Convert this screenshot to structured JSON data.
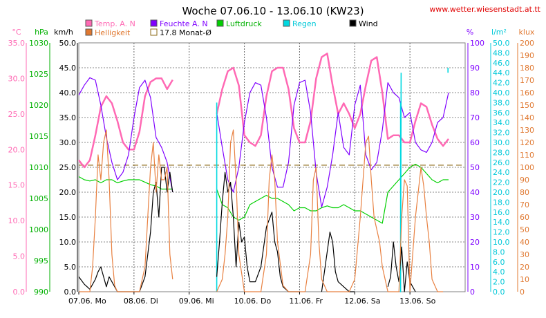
{
  "chart_data": {
    "type": "line",
    "title": "Woche 07.06.10 - 13.06.10 (KW23)",
    "source_url": "www.wetter.wiesenstadt.at.tt",
    "x_labels": [
      "07.06. Mo",
      "08.06. Di",
      "09.06. Mi",
      "10.06. Do",
      "11.06. Fr",
      "12.06. Sa",
      "13.06. So"
    ],
    "legend": [
      "Temp. A. N",
      "Helligkeit",
      "Feuchte A. N",
      "17.8 Monat-Ø",
      "Luftdruck",
      "Regen",
      "Wind"
    ],
    "axes": {
      "temp": {
        "unit": "°C",
        "ticks": [
          "35.0",
          "30.0",
          "25.0",
          "20.0",
          "15.0",
          "10.0",
          "5.0",
          "0.0"
        ],
        "color": "#ff69b4",
        "range": [
          0,
          35
        ]
      },
      "pressure": {
        "unit": "hPa",
        "ticks": [
          "1030",
          "1025",
          "1020",
          "1015",
          "1010",
          "1005",
          "1000",
          "995",
          "990"
        ],
        "color": "#00b000",
        "range": [
          990,
          1030
        ]
      },
      "wind": {
        "unit": "km/h",
        "ticks": [
          "50.0",
          "45.0",
          "40.0",
          "35.0",
          "30.0",
          "25.0",
          "20.0",
          "15.0",
          "10.0",
          "5.0",
          "0.0"
        ],
        "color": "#000000",
        "range": [
          0,
          50
        ]
      },
      "humidity": {
        "unit": "%",
        "ticks": [
          "100",
          "90",
          "80",
          "70",
          "60",
          "50",
          "40",
          "30",
          "20",
          "10",
          "0"
        ],
        "color": "#7f00ff",
        "range": [
          0,
          100
        ]
      },
      "rain": {
        "unit": "l/m²",
        "ticks": [
          "50.0",
          "48.0",
          "46.0",
          "44.0",
          "42.0",
          "40.0",
          "38.0",
          "36.0",
          "34.0",
          "32.0",
          "30.0",
          "28.0",
          "26.0",
          "24.0",
          "22.0",
          "20.0",
          "18.0",
          "16.0",
          "14.0",
          "12.0",
          "10.0",
          "8.0",
          "6.0",
          "4.0",
          "2.0",
          "0.0"
        ],
        "color": "#00c8d8",
        "range": [
          0,
          50
        ]
      },
      "light": {
        "unit": "klux",
        "ticks": [
          "200",
          "190",
          "180",
          "170",
          "160",
          "150",
          "140",
          "130",
          "120",
          "110",
          "100",
          "90",
          "80",
          "70",
          "60",
          "50",
          "40",
          "30",
          "20",
          "10",
          "0"
        ],
        "color": "#e07830",
        "range": [
          0,
          200
        ]
      }
    },
    "monthly_avg_temp": 17.8,
    "series": [
      {
        "name": "Temp. A. N",
        "color": "#ff69b4",
        "axis": "temp",
        "x": [
          0,
          0.1,
          0.2,
          0.3,
          0.4,
          0.5,
          0.6,
          0.7,
          0.8,
          0.9,
          1.0,
          1.1,
          1.2,
          1.3,
          1.4,
          1.5,
          1.6,
          1.7,
          2.5,
          2.6,
          2.7,
          2.8,
          2.9,
          3.0,
          3.1,
          3.2,
          3.3,
          3.4,
          3.5,
          3.6,
          3.7,
          3.8,
          3.9,
          4.0,
          4.1,
          4.2,
          4.3,
          4.4,
          4.5,
          4.6,
          4.7,
          4.8,
          4.9,
          5.0,
          5.1,
          5.2,
          5.3,
          5.4,
          5.5,
          5.6,
          5.7,
          5.8,
          5.9,
          6.0,
          6.1,
          6.2,
          6.3,
          6.4,
          6.5,
          6.6,
          6.7
        ],
        "values": [
          18.5,
          17.5,
          18.5,
          22,
          26,
          27.5,
          26.5,
          24,
          21,
          20,
          20,
          22.5,
          27.5,
          29.5,
          30,
          30,
          28.5,
          29.8,
          25,
          28.5,
          31,
          31.5,
          29,
          22,
          21,
          20.5,
          22,
          27.5,
          31,
          31.5,
          31.5,
          28.5,
          23,
          21,
          21,
          24,
          30,
          33,
          33.5,
          29,
          25,
          26.5,
          25,
          23,
          25,
          29,
          32.5,
          33,
          28,
          21.5,
          22,
          22,
          21,
          21,
          24,
          26.5,
          26,
          23.5,
          21.5,
          20.5,
          21.5
        ]
      },
      {
        "name": "Feuchte A. N",
        "color": "#7f00ff",
        "axis": "humidity",
        "x": [
          0,
          0.1,
          0.2,
          0.3,
          0.4,
          0.5,
          0.6,
          0.7,
          0.8,
          0.9,
          1.0,
          1.1,
          1.2,
          1.3,
          1.4,
          1.5,
          1.6,
          1.7,
          2.5,
          2.6,
          2.7,
          2.8,
          2.9,
          3.0,
          3.1,
          3.2,
          3.3,
          3.4,
          3.5,
          3.6,
          3.7,
          3.8,
          3.9,
          4.0,
          4.1,
          4.2,
          4.3,
          4.4,
          4.5,
          4.6,
          4.7,
          4.8,
          4.9,
          5.0,
          5.1,
          5.2,
          5.3,
          5.4,
          5.5,
          5.6,
          5.7,
          5.8,
          5.9,
          6.0,
          6.1,
          6.2,
          6.3,
          6.4,
          6.5,
          6.6,
          6.7
        ],
        "values": [
          79,
          83,
          86,
          85,
          75,
          62,
          52,
          45,
          48,
          55,
          70,
          82,
          85,
          78,
          62,
          58,
          52,
          40,
          72,
          58,
          45,
          40,
          50,
          68,
          80,
          84,
          83,
          70,
          50,
          42,
          42,
          52,
          75,
          84,
          85,
          72,
          48,
          34,
          42,
          55,
          72,
          58,
          55,
          75,
          83,
          55,
          49,
          52,
          65,
          84,
          80,
          78,
          70,
          72,
          60,
          57,
          56,
          60,
          68,
          70,
          80
        ]
      },
      {
        "name": "Luftdruck",
        "color": "#00d000",
        "axis": "pressure",
        "x": [
          0,
          0.1,
          0.2,
          0.3,
          0.4,
          0.5,
          0.6,
          0.7,
          0.8,
          0.9,
          1.0,
          1.1,
          1.2,
          1.3,
          1.4,
          1.5,
          1.6,
          1.7,
          2.5,
          2.6,
          2.7,
          2.8,
          2.9,
          3.0,
          3.1,
          3.2,
          3.3,
          3.4,
          3.5,
          3.6,
          3.7,
          3.8,
          3.9,
          4.0,
          4.1,
          4.2,
          4.3,
          4.4,
          4.5,
          4.6,
          4.7,
          4.8,
          4.9,
          5.0,
          5.1,
          5.2,
          5.3,
          5.4,
          5.5,
          5.6,
          5.7,
          5.8,
          5.9,
          6.0,
          6.1,
          6.2,
          6.3,
          6.4,
          6.5,
          6.6,
          6.7
        ],
        "values": [
          1008.5,
          1008,
          1007.8,
          1008,
          1007.5,
          1008,
          1008,
          1007.5,
          1007.8,
          1008,
          1008,
          1008,
          1007.6,
          1007.2,
          1007,
          1006.5,
          1006.5,
          1006.5,
          1006.5,
          1004,
          1003.5,
          1002,
          1001.5,
          1002,
          1004,
          1004.5,
          1005,
          1005.5,
          1005,
          1005,
          1004.5,
          1004,
          1003,
          1003.5,
          1003.5,
          1003,
          1003,
          1003.5,
          1003.8,
          1003.5,
          1003.5,
          1004,
          1003.5,
          1003,
          1003,
          1002.5,
          1002,
          1001.5,
          1001,
          1006,
          1007,
          1008,
          1009,
          1010,
          1010.5,
          1010,
          1009,
          1008,
          1007.5,
          1008,
          1008
        ]
      },
      {
        "name": "Regen",
        "color": "#00d8e0",
        "axis": "rain",
        "x": [
          2.5,
          2.5,
          5.83,
          5.83,
          5.84,
          5.84,
          6.69,
          6.69
        ],
        "values": [
          0,
          38,
          38,
          0,
          44,
          44,
          44,
          45
        ]
      },
      {
        "name": "Wind",
        "color": "#000000",
        "axis": "wind",
        "x": [
          0,
          0.1,
          0.2,
          0.3,
          0.35,
          0.4,
          0.45,
          0.5,
          0.55,
          0.6,
          0.7,
          0.8,
          0.9,
          1.0,
          1.1,
          1.2,
          1.3,
          1.35,
          1.4,
          1.45,
          1.5,
          1.55,
          1.6,
          1.65,
          1.7,
          2.5,
          2.55,
          2.6,
          2.65,
          2.7,
          2.75,
          2.8,
          2.85,
          2.9,
          2.95,
          3.0,
          3.05,
          3.1,
          3.2,
          3.3,
          3.4,
          3.5,
          3.55,
          3.6,
          3.65,
          3.7,
          3.8,
          3.9,
          4.0,
          4.4,
          4.5,
          4.55,
          4.6,
          4.65,
          4.7,
          4.8,
          4.9,
          5.0,
          5.6,
          5.65,
          5.7,
          5.75,
          5.8,
          5.85,
          5.9,
          5.95,
          6.0,
          6.05,
          6.1
        ],
        "values": [
          3,
          1.5,
          0.5,
          2.5,
          4,
          5,
          3,
          1,
          3,
          2,
          0,
          0,
          0,
          0,
          0,
          3,
          12,
          20,
          22,
          15,
          25,
          25,
          20,
          24,
          20,
          3,
          10,
          18,
          24,
          20,
          22,
          15,
          5,
          14,
          10,
          11,
          5,
          2,
          2,
          5,
          13,
          16,
          10,
          8,
          3,
          1,
          0,
          0,
          0,
          0,
          8,
          12,
          10,
          4,
          2,
          1,
          0,
          0,
          1,
          3,
          10,
          5,
          2,
          9,
          0,
          6,
          2,
          1,
          0
        ]
      },
      {
        "name": "Helligkeit",
        "color": "#e88040",
        "axis": "light",
        "x": [
          0,
          0.1,
          0.2,
          0.25,
          0.3,
          0.35,
          0.4,
          0.45,
          0.5,
          0.55,
          0.6,
          0.65,
          0.7,
          0.8,
          0.9,
          1.0,
          1.1,
          1.2,
          1.25,
          1.3,
          1.35,
          1.4,
          1.45,
          1.5,
          1.55,
          1.6,
          1.65,
          1.7,
          2.5,
          2.6,
          2.65,
          2.7,
          2.75,
          2.8,
          2.85,
          2.9,
          3.0,
          3.1,
          3.2,
          3.3,
          3.4,
          3.45,
          3.5,
          3.55,
          3.6,
          3.7,
          3.8,
          3.9,
          4.0,
          4.1,
          4.2,
          4.25,
          4.3,
          4.35,
          4.4,
          4.5,
          4.6,
          4.7,
          4.8,
          4.9,
          5.0,
          5.1,
          5.2,
          5.25,
          5.3,
          5.35,
          5.4,
          5.45,
          5.5,
          5.6,
          5.7,
          5.8,
          5.85,
          5.9,
          5.95,
          6.0,
          6.1,
          6.2,
          6.25,
          6.3,
          6.35,
          6.4,
          6.5,
          6.6
        ],
        "values": [
          0,
          0,
          0,
          20,
          60,
          110,
          90,
          120,
          130,
          90,
          30,
          5,
          0,
          0,
          0,
          0,
          0,
          20,
          60,
          100,
          120,
          80,
          110,
          90,
          90,
          100,
          30,
          10,
          0,
          10,
          30,
          60,
          120,
          130,
          90,
          30,
          0,
          0,
          0,
          0,
          30,
          90,
          110,
          90,
          40,
          5,
          0,
          0,
          0,
          0,
          30,
          90,
          100,
          40,
          10,
          0,
          0,
          0,
          0,
          0,
          10,
          60,
          120,
          125,
          90,
          60,
          50,
          40,
          20,
          0,
          0,
          0,
          60,
          90,
          85,
          0,
          60,
          100,
          85,
          60,
          40,
          10,
          0,
          0
        ]
      }
    ]
  }
}
